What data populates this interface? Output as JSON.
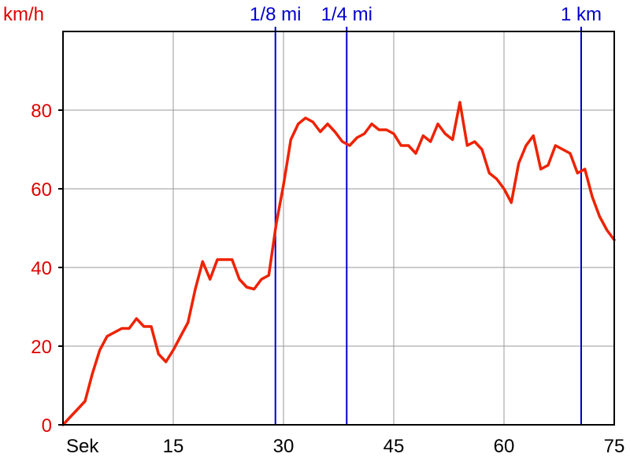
{
  "chart_data": {
    "type": "line",
    "y_unit_label": "km/h",
    "x_unit_label": "Sek",
    "xlim": [
      0,
      75
    ],
    "ylim": [
      0,
      100
    ],
    "x_ticks": [
      15,
      30,
      45,
      60,
      75
    ],
    "y_ticks": [
      0,
      20,
      40,
      60,
      80
    ],
    "grid": true,
    "colors": {
      "series": "#ee2200",
      "markers": "#0000cc",
      "grid": "#999999",
      "axis_text_y": "#e00000"
    },
    "markers": [
      {
        "label": "1/8 mi",
        "x": 28.9
      },
      {
        "label": "1/4 mi",
        "x": 38.6
      },
      {
        "label": "1 km",
        "x": 70.5
      }
    ],
    "series": [
      {
        "x": [
          0,
          1,
          2,
          3,
          4,
          5,
          6,
          7,
          8,
          9,
          10,
          11,
          12,
          13,
          14,
          15,
          16,
          17,
          18,
          19,
          20,
          21,
          22,
          23,
          24,
          25,
          26,
          27,
          28,
          29,
          30,
          31,
          32,
          33,
          34,
          35,
          36,
          37,
          38,
          39,
          40,
          41,
          42,
          43,
          44,
          45,
          46,
          47,
          48,
          49,
          50,
          51,
          52,
          53,
          54,
          55,
          56,
          57,
          58,
          59,
          60,
          61,
          62,
          63,
          64,
          65,
          66,
          67,
          68,
          69,
          70,
          71,
          72,
          73,
          74,
          75
        ],
        "y": [
          0,
          2,
          4,
          6,
          13,
          19,
          22.5,
          23.5,
          24.5,
          24.5,
          27,
          25,
          25,
          18,
          16,
          19,
          22.5,
          26,
          34.5,
          41.5,
          37,
          42,
          42,
          42,
          37,
          35,
          34.5,
          37,
          38,
          51,
          61,
          72.5,
          76.5,
          78,
          77,
          74.5,
          76.5,
          74.5,
          72,
          71,
          73,
          74,
          76.5,
          75,
          75,
          74,
          71,
          71,
          69,
          73.5,
          72,
          76.5,
          74,
          72.5,
          82,
          71,
          72,
          70,
          64,
          62.5,
          60,
          56.5,
          66.5,
          71,
          73.5,
          65,
          66,
          71,
          70,
          69,
          64,
          65,
          58,
          53,
          49.5,
          47
        ]
      }
    ]
  }
}
